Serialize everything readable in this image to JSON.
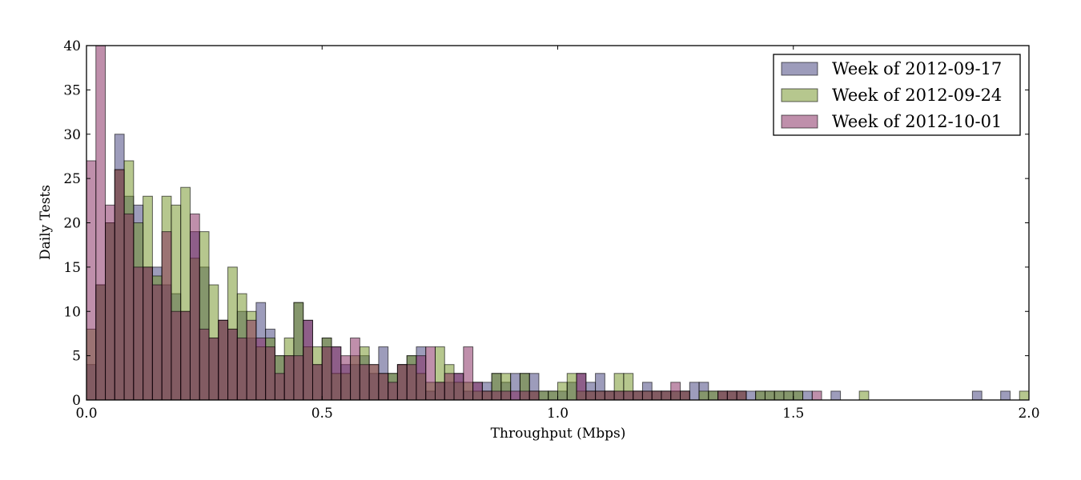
{
  "chart_data": {
    "type": "bar",
    "subtype": "overlapping-histogram",
    "title": "",
    "xlabel": "Throughput (Mbps)",
    "ylabel": "Daily Tests",
    "xlim": [
      0.0,
      2.0
    ],
    "ylim": [
      0,
      40
    ],
    "bin_width": 0.02,
    "xticks": [
      {
        "value": 0.0,
        "label": "0.0"
      },
      {
        "value": 0.5,
        "label": "0.5"
      },
      {
        "value": 1.0,
        "label": "1.0"
      },
      {
        "value": 1.5,
        "label": "1.5"
      },
      {
        "value": 2.0,
        "label": "2.0"
      }
    ],
    "yticks": [
      {
        "value": 0,
        "label": "0"
      },
      {
        "value": 5,
        "label": "5"
      },
      {
        "value": 10,
        "label": "10"
      },
      {
        "value": 15,
        "label": "15"
      },
      {
        "value": 20,
        "label": "20"
      },
      {
        "value": 25,
        "label": "25"
      },
      {
        "value": 30,
        "label": "30"
      },
      {
        "value": 35,
        "label": "35"
      },
      {
        "value": 40,
        "label": "40"
      }
    ],
    "grid": false,
    "legend_position": "top-right",
    "series": [
      {
        "name": "Week of 2012-09-17",
        "color": "#3c3a78",
        "values": [
          4,
          13,
          20,
          30,
          23,
          22,
          15,
          15,
          13,
          12,
          10,
          19,
          15,
          7,
          9,
          8,
          10,
          7,
          11,
          8,
          5,
          5,
          11,
          9,
          4,
          7,
          6,
          4,
          4,
          5,
          3,
          6,
          3,
          4,
          5,
          6,
          1,
          2,
          2,
          3,
          1,
          2,
          2,
          3,
          2,
          3,
          3,
          3,
          1,
          1,
          1,
          2,
          3,
          2,
          3,
          1,
          1,
          1,
          1,
          2,
          1,
          1,
          1,
          1,
          2,
          2,
          1,
          1,
          1,
          1,
          1,
          1,
          1,
          1,
          1,
          1,
          1,
          0,
          0,
          1,
          0,
          0,
          0,
          0,
          0,
          0,
          0,
          0,
          0,
          0,
          0,
          0,
          0,
          0,
          1,
          0,
          0,
          1,
          0,
          0
        ]
      },
      {
        "name": "Week of 2012-09-24",
        "color": "#6e901e",
        "values": [
          8,
          13,
          20,
          26,
          27,
          20,
          23,
          14,
          23,
          22,
          24,
          16,
          19,
          13,
          9,
          15,
          12,
          10,
          6,
          7,
          5,
          7,
          11,
          6,
          6,
          7,
          3,
          3,
          5,
          6,
          4,
          3,
          3,
          4,
          5,
          3,
          2,
          6,
          4,
          2,
          2,
          1,
          1,
          3,
          3,
          0,
          3,
          1,
          1,
          1,
          2,
          3,
          1,
          1,
          1,
          1,
          3,
          3,
          1,
          1,
          1,
          1,
          1,
          1,
          0,
          1,
          1,
          1,
          1,
          1,
          0,
          1,
          1,
          1,
          1,
          1,
          0,
          0,
          0,
          0,
          0,
          0,
          1,
          0,
          0,
          0,
          0,
          0,
          0,
          0,
          0,
          0,
          0,
          0,
          0,
          0,
          0,
          0,
          0,
          1
        ]
      },
      {
        "name": "Week of 2012-10-01",
        "color": "#7f2058",
        "values": [
          27,
          40,
          22,
          26,
          21,
          15,
          15,
          13,
          19,
          10,
          10,
          21,
          8,
          7,
          9,
          8,
          7,
          9,
          7,
          6,
          3,
          5,
          5,
          9,
          4,
          6,
          6,
          5,
          7,
          4,
          4,
          3,
          2,
          4,
          4,
          5,
          6,
          2,
          3,
          3,
          6,
          2,
          1,
          1,
          1,
          1,
          1,
          1,
          0,
          0,
          0,
          0,
          3,
          1,
          1,
          1,
          1,
          1,
          1,
          1,
          1,
          1,
          2,
          1,
          0,
          0,
          0,
          1,
          1,
          1,
          0,
          0,
          0,
          0,
          0,
          0,
          0,
          1,
          0,
          0,
          0,
          0,
          0,
          0,
          0,
          0,
          0,
          0,
          0,
          0,
          0,
          0,
          0,
          0,
          0,
          0,
          0,
          0,
          0,
          0
        ]
      }
    ]
  }
}
